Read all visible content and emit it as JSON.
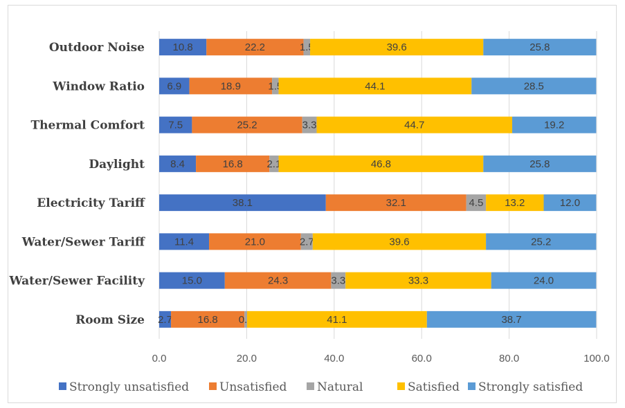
{
  "chart_data": {
    "type": "bar",
    "orientation": "horizontal",
    "stacked": true,
    "title": "",
    "xlabel": "",
    "ylabel": "",
    "xlim": [
      0,
      100
    ],
    "xticks": [
      "0.0",
      "20.0",
      "40.0",
      "60.0",
      "80.0",
      "100.0"
    ],
    "grid": true,
    "legend_position": "bottom",
    "categories": [
      "Outdoor Noise",
      "Window Ratio",
      "Thermal Comfort",
      "Daylight",
      "Electricity Tariff",
      "Water/Sewer Tariff",
      "Water/Sewer Facility",
      "Room Size"
    ],
    "series": [
      {
        "name": "Strongly unsatisfied",
        "color": "#4472c4",
        "values": [
          10.8,
          6.9,
          7.5,
          8.4,
          38.1,
          11.4,
          15.0,
          2.7
        ],
        "labels": [
          "10.8",
          "6.9",
          "7.5",
          "8.4",
          "38.1",
          "11.4",
          "15.0",
          "2.7"
        ]
      },
      {
        "name": "Unsatisfied",
        "color": "#ed7d31",
        "values": [
          22.2,
          18.9,
          25.2,
          16.8,
          32.1,
          21.0,
          24.3,
          16.8
        ],
        "labels": [
          "22.2",
          "18.9",
          "25.2",
          "16.8",
          "32.1",
          "21.0",
          "24.3",
          "16.8"
        ]
      },
      {
        "name": "Natural",
        "color": "#a5a5a5",
        "values": [
          1.5,
          1.5,
          3.3,
          2.1,
          4.5,
          2.7,
          3.3,
          0.6
        ],
        "labels": [
          "1.5",
          "1.5",
          "3.3",
          "2.1",
          "4.5",
          "2.7",
          "3.3",
          "0.6"
        ]
      },
      {
        "name": "Satisfied",
        "color": "#ffc000",
        "values": [
          39.6,
          44.1,
          44.7,
          46.8,
          13.2,
          39.6,
          33.3,
          41.1
        ],
        "labels": [
          "39.6",
          "44.1",
          "44.7",
          "46.8",
          "13.2",
          "39.6",
          "33.3",
          "41.1"
        ]
      },
      {
        "name": "Strongly satisfied",
        "color": "#5b9bd5",
        "values": [
          25.8,
          28.5,
          19.2,
          25.8,
          12.0,
          25.2,
          24.0,
          38.7
        ],
        "labels": [
          "25.8",
          "28.5",
          "19.2",
          "25.8",
          "12.0",
          "25.2",
          "24.0",
          "38.7"
        ]
      }
    ]
  }
}
